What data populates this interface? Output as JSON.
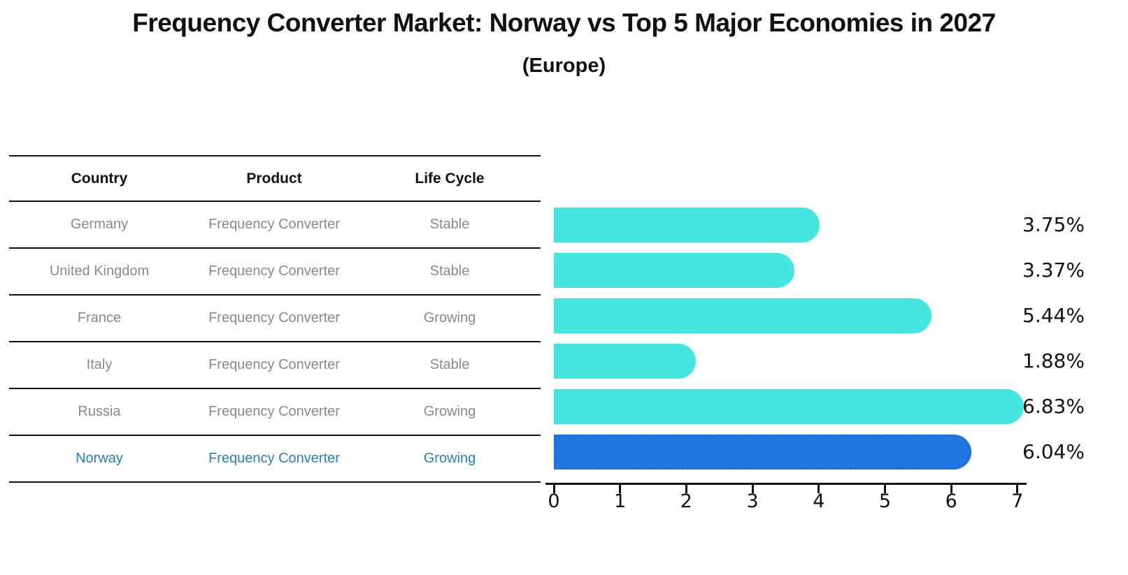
{
  "title": "Frequency Converter Market: Norway vs Top 5 Major Economies in 2027",
  "subtitle": "(Europe)",
  "table": {
    "columns": [
      "Country",
      "Product",
      "Life Cycle"
    ],
    "rows": [
      {
        "country": "Germany",
        "product": "Frequency Converter",
        "life_cycle": "Stable",
        "highlight": false
      },
      {
        "country": "United Kingdom",
        "product": "Frequency Converter",
        "life_cycle": "Stable",
        "highlight": false
      },
      {
        "country": "France",
        "product": "Frequency Converter",
        "life_cycle": "Growing",
        "highlight": false
      },
      {
        "country": "Italy",
        "product": "Frequency Converter",
        "life_cycle": "Stable",
        "highlight": false
      },
      {
        "country": "Russia",
        "product": "Frequency Converter",
        "life_cycle": "Growing",
        "highlight": false
      },
      {
        "country": "Norway",
        "product": "Frequency Converter",
        "life_cycle": "Growing",
        "highlight": true
      }
    ]
  },
  "chart_data": {
    "type": "bar",
    "orientation": "horizontal",
    "title": "Frequency Converter Market: Norway vs Top 5 Major Economies in 2027",
    "subtitle": "(Europe)",
    "categories": [
      "Germany",
      "United Kingdom",
      "France",
      "Italy",
      "Russia",
      "Norway"
    ],
    "values": [
      3.75,
      3.37,
      5.44,
      1.88,
      6.83,
      6.04
    ],
    "labels": [
      "3.75%",
      "3.37%",
      "5.44%",
      "1.88%",
      "6.83%",
      "6.04%"
    ],
    "xlim": [
      0,
      7.1
    ],
    "xticks": [
      "0",
      "1",
      "2",
      "3",
      "4",
      "5",
      "6",
      "7"
    ],
    "grid": false,
    "legend": false,
    "highlight_index": 5,
    "bar_color": "#45e6e0",
    "highlight_color": "#1e78e0",
    "highlight_text_color": "#2980c4",
    "row_text_color": "#8a8a8a"
  }
}
